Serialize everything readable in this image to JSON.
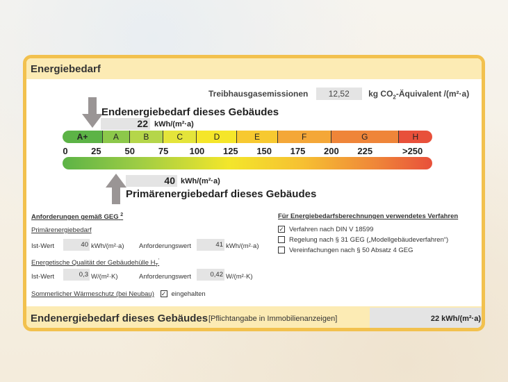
{
  "title": "Energiebedarf",
  "emissions": {
    "label": "Treibhausgasemissionen",
    "value": "12,52",
    "unit_pre": "kg CO",
    "unit_sub": "2",
    "unit_post": "-Äquivalent /(m²·a)"
  },
  "end_energy": {
    "label": "Endenergiebedarf dieses Gebäudes",
    "value": "22",
    "unit": "kWh/(m²·a)"
  },
  "primary_energy": {
    "label": "Primärenergiebedarf dieses Gebäudes",
    "value": "40",
    "unit": "kWh/(m²·a)"
  },
  "scale": {
    "classes": [
      "A+",
      "A",
      "B",
      "C",
      "D",
      "E",
      "F",
      "G",
      "H"
    ],
    "ticks": [
      "0",
      "25",
      "50",
      "75",
      "100",
      "125",
      "150",
      "175",
      "200",
      "225",
      ">250"
    ],
    "colors": [
      "#5cb346",
      "#8cc84a",
      "#b5d64a",
      "#e4e43a",
      "#f5e62a",
      "#f7c930",
      "#f4a738",
      "#ef8539",
      "#e8503a"
    ]
  },
  "requirements": {
    "title": "Anforderungen gemäß GEG",
    "title_sup": "2",
    "primary": {
      "title": "Primärenergiebedarf",
      "ist_label": "Ist-Wert",
      "ist_value": "40",
      "ist_unit": "kWh/(m²·a)",
      "anf_label": "Anforderungswert",
      "anf_value": "41",
      "anf_unit": "kWh/(m²·a)"
    },
    "envelope": {
      "title": "Energetische Qualität der Gebäudehülle H",
      "title_sub": "T",
      "title_sup": "'",
      "ist_label": "Ist-Wert",
      "ist_value": "0,3",
      "ist_unit": "W/(m²·K)",
      "anf_label": "Anforderungswert",
      "anf_value": "0,42",
      "anf_unit": "W/(m²·K)"
    },
    "summer": {
      "label": "Sommerlicher Wärmeschutz (bei Neubau)",
      "checked": true,
      "status": "eingehalten"
    }
  },
  "method": {
    "title": "Für Energiebedarfsberechnungen verwendetes Verfahren",
    "options": [
      {
        "label": "Verfahren nach DIN V 18599",
        "checked": true
      },
      {
        "label": "Regelung nach § 31 GEG („Modellgebäudeverfahren“)",
        "checked": false
      },
      {
        "label": "Vereinfachungen nach § 50 Absatz 4 GEG",
        "checked": false
      }
    ]
  },
  "footer": {
    "label": "Endenergiebedarf dieses Gebäudes",
    "note": "[Pflichtangabe in Immobilienanzeigen]",
    "value": "22 kWh/(m²·a)"
  }
}
